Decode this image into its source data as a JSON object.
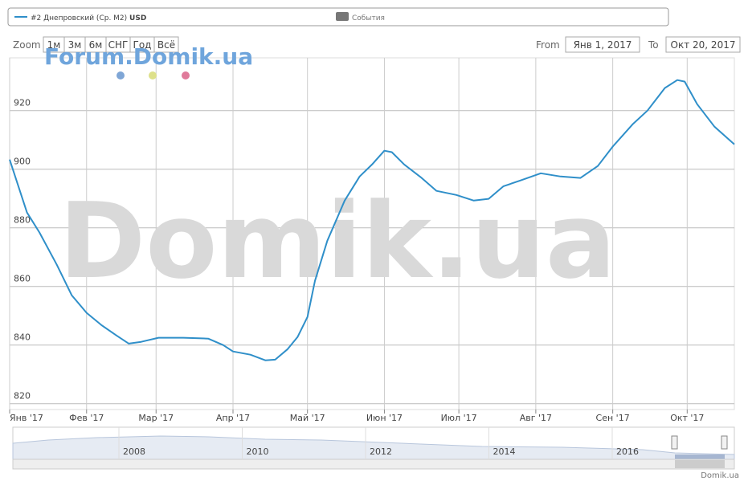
{
  "chart_data": {
    "type": "line",
    "series": [
      {
        "name": "#2 Днепровский (Ср. М2)",
        "unit": "USD",
        "color": "#2f8fc9",
        "x": [
          "2017-01-01",
          "2017-01-08",
          "2017-01-13",
          "2017-01-20",
          "2017-01-26",
          "2017-02-01",
          "2017-02-07",
          "2017-02-13",
          "2017-02-18",
          "2017-02-23",
          "2017-03-02",
          "2017-03-12",
          "2017-03-22",
          "2017-03-28",
          "2017-04-01",
          "2017-04-08",
          "2017-04-14",
          "2017-04-18",
          "2017-04-23",
          "2017-04-27",
          "2017-05-01",
          "2017-05-04",
          "2017-05-09",
          "2017-05-16",
          "2017-05-22",
          "2017-05-27",
          "2017-06-01",
          "2017-06-04",
          "2017-06-09",
          "2017-06-16",
          "2017-06-22",
          "2017-06-30",
          "2017-07-07",
          "2017-07-13",
          "2017-07-19",
          "2017-07-26",
          "2017-08-03",
          "2017-08-11",
          "2017-08-19",
          "2017-08-26",
          "2017-09-01",
          "2017-09-09",
          "2017-09-15",
          "2017-09-22",
          "2017-09-27",
          "2017-09-30",
          "2017-10-05",
          "2017-10-12",
          "2017-10-20"
        ],
        "values": [
          903.3,
          885.2,
          878.4,
          867.4,
          857,
          851,
          846.8,
          843.3,
          840.5,
          841.1,
          842.5,
          842.5,
          842.2,
          840,
          837.8,
          836.7,
          834.8,
          835,
          838.6,
          842.7,
          849.6,
          861.9,
          875.6,
          889.3,
          897.5,
          901.6,
          906.3,
          905.8,
          901.6,
          897,
          892.6,
          891.2,
          889.3,
          889.9,
          894.2,
          896.2,
          898.6,
          897.5,
          897,
          901.1,
          907.7,
          915.3,
          920,
          927.7,
          930.4,
          929.9,
          922.2,
          914.5,
          908.5
        ]
      }
    ],
    "xlim": [
      "2017-01-01",
      "2017-10-20"
    ],
    "xticks": [
      {
        "value": "2017-01-01",
        "label": "Янв '17"
      },
      {
        "value": "2017-02-01",
        "label": "Фев '17"
      },
      {
        "value": "2017-03-01",
        "label": "Мар '17"
      },
      {
        "value": "2017-04-01",
        "label": "Апр '17"
      },
      {
        "value": "2017-05-01",
        "label": "Май '17"
      },
      {
        "value": "2017-06-01",
        "label": "Июн '17"
      },
      {
        "value": "2017-07-01",
        "label": "Июл '17"
      },
      {
        "value": "2017-08-01",
        "label": "Авг '17"
      },
      {
        "value": "2017-09-01",
        "label": "Сен '17"
      },
      {
        "value": "2017-10-01",
        "label": "Окт '17"
      }
    ],
    "ylim": [
      818,
      938
    ],
    "yticks": [
      820,
      840,
      860,
      880,
      900,
      920
    ],
    "grid": true
  },
  "ui": {
    "events_label": "События",
    "zoom_label": "Zoom",
    "zoom_buttons": [
      "1м",
      "3м",
      "6м",
      "СНГ",
      "Год",
      "Всё"
    ],
    "from_label": "From",
    "from_value": "Янв 1, 2017",
    "to_label": "To",
    "to_value": "Окт 20, 2017"
  },
  "watermarks": {
    "forum": "Forum.Domik.ua",
    "big": "Domik.ua"
  },
  "navigator": {
    "labels": [
      "2008",
      "2010",
      "2012",
      "2014",
      "2016"
    ]
  },
  "credit": "Domik.ua"
}
